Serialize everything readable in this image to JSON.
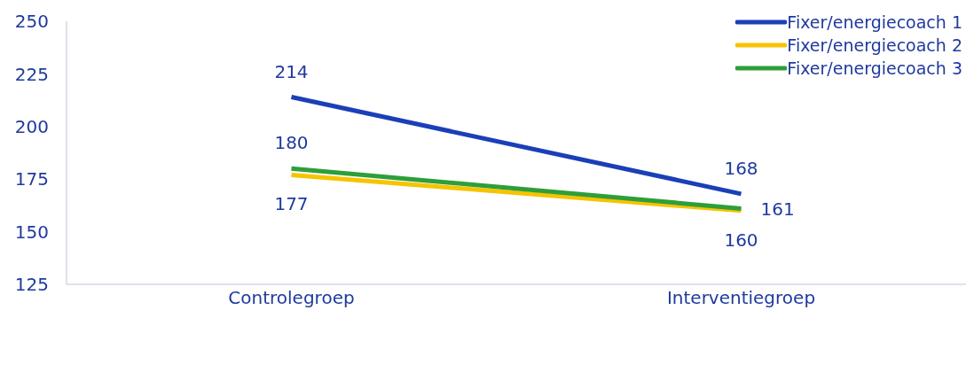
{
  "chart_data": {
    "type": "line",
    "categories": [
      "Controlegroep",
      "Interventiegroep"
    ],
    "series": [
      {
        "name": "Fixer/energiecoach 1",
        "color": "#1a3fb8",
        "values": [
          214,
          168
        ]
      },
      {
        "name": "Fixer/energiecoach 2",
        "color": "#f5c400",
        "values": [
          177,
          160
        ]
      },
      {
        "name": "Fixer/energiecoach 3",
        "color": "#2e9e3a",
        "values": [
          180,
          161
        ]
      }
    ],
    "ylim": [
      125,
      250
    ],
    "yticks": [
      125,
      150,
      175,
      200,
      225,
      250
    ],
    "grid": false,
    "legend": "top right",
    "marker": "none",
    "line_style": "solid",
    "data_labels": true
  }
}
